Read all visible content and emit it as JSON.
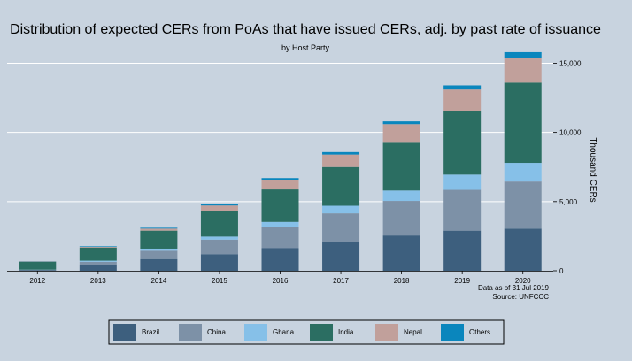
{
  "chart_data": {
    "type": "bar",
    "stacked": true,
    "title": "Distribution of expected CERs from PoAs that have issued CERs, adj. by past rate of issuance",
    "subtitle": "by Host Party",
    "ylabel": "Thousand CERs",
    "ylim": [
      0,
      16500
    ],
    "yticks": [
      0,
      5000,
      10000,
      15000
    ],
    "ytick_labels": [
      "0",
      "5,000",
      "10,000",
      "15,000"
    ],
    "categories": [
      "2012",
      "2013",
      "2014",
      "2015",
      "2016",
      "2017",
      "2018",
      "2019",
      "2020"
    ],
    "series": [
      {
        "name": "Brazil",
        "color": "#3d5f7e",
        "values": [
          50,
          400,
          850,
          1200,
          1650,
          2050,
          2550,
          2900,
          3050
        ]
      },
      {
        "name": "China",
        "color": "#7d91a7",
        "values": [
          20,
          250,
          600,
          1050,
          1500,
          2100,
          2500,
          2950,
          3400
        ]
      },
      {
        "name": "Ghana",
        "color": "#86c0e8",
        "values": [
          10,
          80,
          150,
          220,
          380,
          550,
          750,
          1100,
          1350
        ]
      },
      {
        "name": "India",
        "color": "#2b6e62",
        "values": [
          580,
          950,
          1300,
          1850,
          2350,
          2800,
          3450,
          4600,
          5800
        ]
      },
      {
        "name": "Nepal",
        "color": "#c1a09b",
        "values": [
          20,
          50,
          150,
          400,
          700,
          900,
          1350,
          1550,
          1800
        ]
      },
      {
        "name": "Others",
        "color": "#0a86bd",
        "values": [
          10,
          40,
          60,
          80,
          120,
          180,
          200,
          300,
          400
        ]
      }
    ],
    "legend_position": "bottom",
    "notes": [
      "Data as of 31 Jul 2019",
      "Source: UNFCCC"
    ]
  }
}
